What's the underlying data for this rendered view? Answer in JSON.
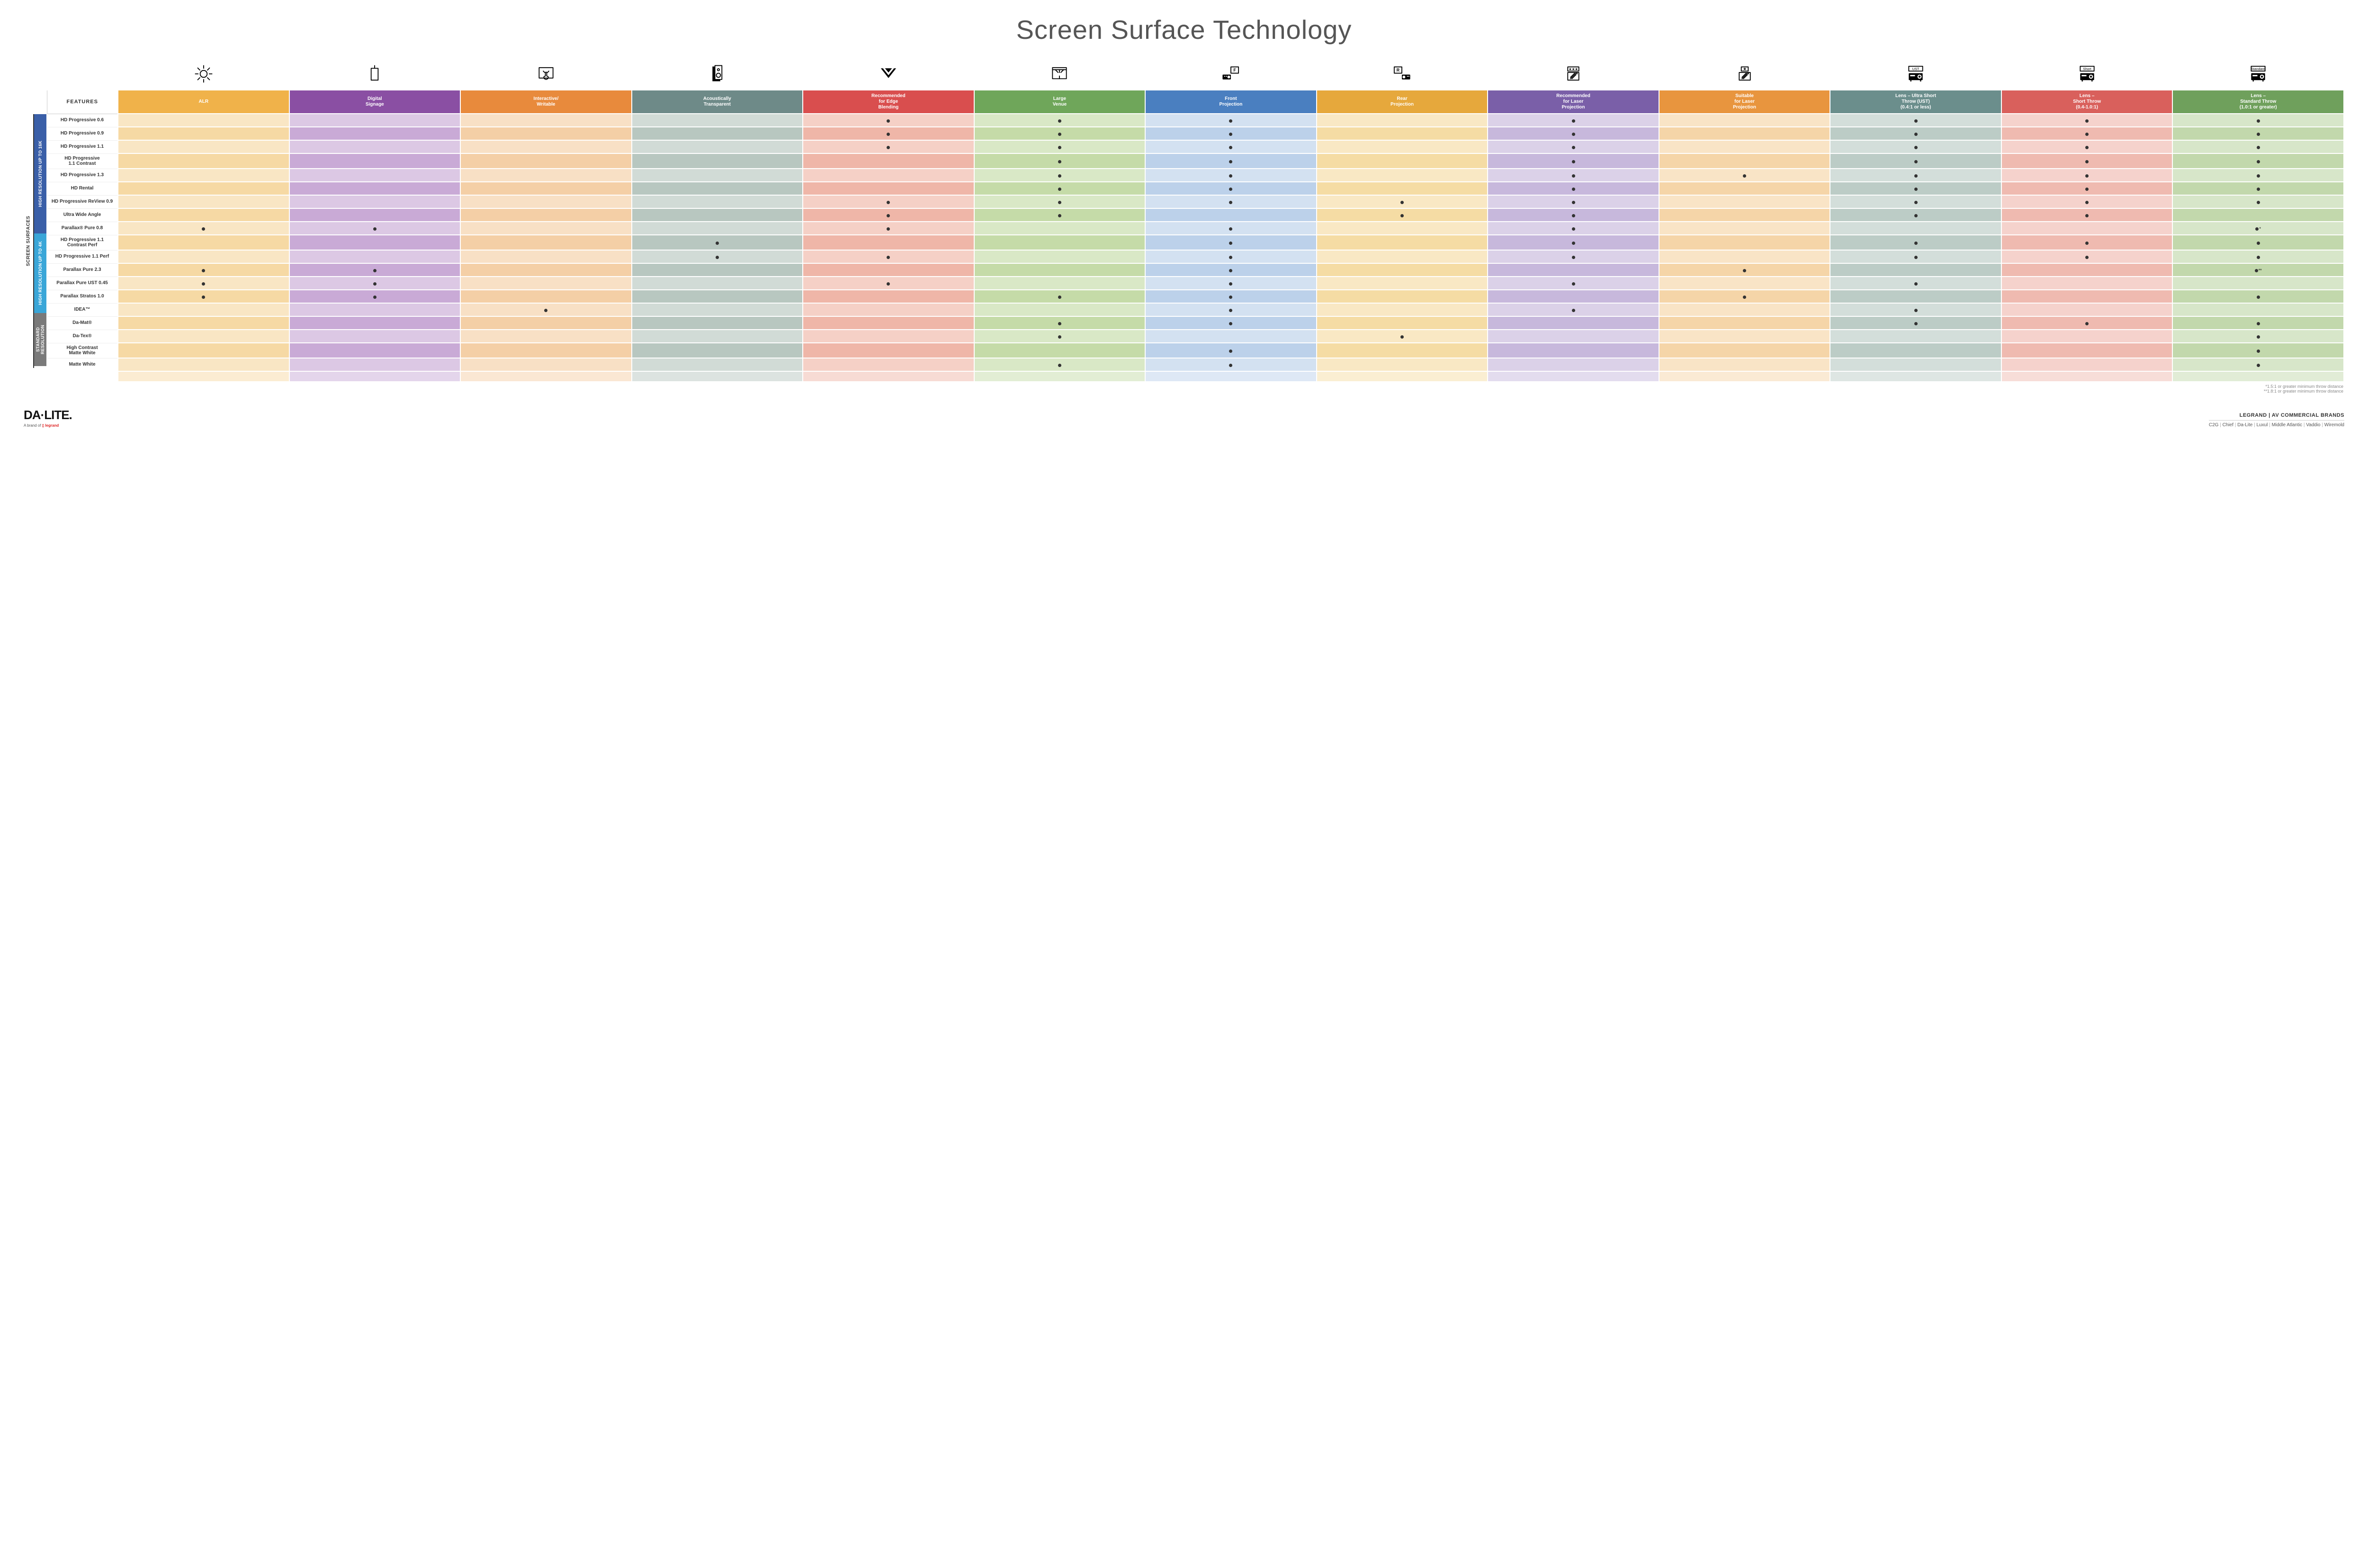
{
  "title": "Screen Surface Technology",
  "features_label": "FEATURES",
  "columns": [
    {
      "key": "alr",
      "label": "ALR",
      "color": "#f0b24a",
      "alt": "#f6d9a4"
    },
    {
      "key": "signage",
      "label": "Digital\nSignage",
      "color": "#8a4fa3",
      "alt": "#c9aad6"
    },
    {
      "key": "interactive",
      "label": "Interactive/\nWritable",
      "color": "#e88a3c",
      "alt": "#f4cfa6"
    },
    {
      "key": "acoustic",
      "label": "Acoustically\nTransparent",
      "color": "#6e8a88",
      "alt": "#b8c7c0"
    },
    {
      "key": "edge",
      "label": "Recommended\nfor Edge\nBlending",
      "color": "#d94e4e",
      "alt": "#efb6a8"
    },
    {
      "key": "large",
      "label": "Large\nVenue",
      "color": "#6fa65a",
      "alt": "#c5dba8"
    },
    {
      "key": "front",
      "label": "Front\nProjection",
      "color": "#4a7fc0",
      "alt": "#bcd1ea"
    },
    {
      "key": "rear",
      "label": "Rear\nProjection",
      "color": "#e6a83c",
      "alt": "#f5dca4"
    },
    {
      "key": "reclaser",
      "label": "Recommended\nfor Laser\nProjection",
      "color": "#7a5fa8",
      "alt": "#c7b8dc"
    },
    {
      "key": "suitlaser",
      "label": "Suitable\nfor Laser\nProjection",
      "color": "#e8953e",
      "alt": "#f5d5a8"
    },
    {
      "key": "ust",
      "label": "Lens – Ultra Short\nThrow (UST)\n(0.4:1 or less)",
      "color": "#6b8e8c",
      "alt": "#bcccc6"
    },
    {
      "key": "short",
      "label": "Lens –\nShort Throw\n(0.4-1.0:1)",
      "color": "#d9605c",
      "alt": "#efbab0"
    },
    {
      "key": "std",
      "label": "Lens –\nStandard Throw\n(1.0:1 or greater)",
      "color": "#6fa05c",
      "alt": "#c2d8ac"
    }
  ],
  "groups": [
    {
      "label": "HIGH RESOLUTION UP TO 16K",
      "color": "#3a5fa8",
      "rows": 9
    },
    {
      "label": "HIGH RESOLUTION UP TO 4K",
      "color": "#3aa6d8",
      "rows": 6
    },
    {
      "label": "STANDARD\nRESOLUTION",
      "color": "#7a7a7a",
      "rows": 4
    }
  ],
  "side_label": "SCREEN SURFACES",
  "rows": [
    {
      "label": "HD Progressive 0.6",
      "dots": {
        "edge": "",
        "large": "",
        "front": "",
        "reclaser": "",
        "ust": "",
        "short": "",
        "std": ""
      }
    },
    {
      "label": "HD Progressive 0.9",
      "dots": {
        "edge": "",
        "large": "",
        "front": "",
        "reclaser": "",
        "ust": "",
        "short": "",
        "std": ""
      }
    },
    {
      "label": "HD Progressive 1.1",
      "dots": {
        "edge": "",
        "large": "",
        "front": "",
        "reclaser": "",
        "ust": "",
        "short": "",
        "std": ""
      }
    },
    {
      "label": "HD Progressive\n1.1 Contrast",
      "dots": {
        "large": "",
        "front": "",
        "reclaser": "",
        "ust": "",
        "short": "",
        "std": ""
      }
    },
    {
      "label": "HD Progressive 1.3",
      "dots": {
        "large": "",
        "front": "",
        "reclaser": "",
        "suitlaser": "",
        "ust": "",
        "short": "",
        "std": ""
      }
    },
    {
      "label": "HD Rental",
      "dots": {
        "large": "",
        "front": "",
        "reclaser": "",
        "ust": "",
        "short": "",
        "std": ""
      }
    },
    {
      "label": "HD Progressive ReView 0.9",
      "dots": {
        "edge": "",
        "large": "",
        "front": "",
        "rear": "",
        "reclaser": "",
        "ust": "",
        "short": "",
        "std": ""
      }
    },
    {
      "label": "Ultra Wide Angle",
      "dots": {
        "edge": "",
        "large": "",
        "rear": "",
        "reclaser": "",
        "ust": "",
        "short": ""
      }
    },
    {
      "label": "Parallax® Pure 0.8",
      "dots": {
        "alr": "",
        "signage": "",
        "edge": "",
        "front": "",
        "reclaser": "",
        "std": "*"
      }
    },
    {
      "label": "HD Progressive 1.1\nContrast Perf",
      "dots": {
        "acoustic": "",
        "front": "",
        "reclaser": "",
        "ust": "",
        "short": "",
        "std": ""
      }
    },
    {
      "label": "HD Progressive 1.1 Perf",
      "dots": {
        "acoustic": "",
        "edge": "",
        "front": "",
        "reclaser": "",
        "ust": "",
        "short": "",
        "std": ""
      }
    },
    {
      "label": "Parallax Pure 2.3",
      "dots": {
        "alr": "",
        "signage": "",
        "front": "",
        "suitlaser": "",
        "std": "**"
      }
    },
    {
      "label": "Parallax Pure UST 0.45",
      "dots": {
        "alr": "",
        "signage": "",
        "edge": "",
        "front": "",
        "reclaser": "",
        "ust": ""
      }
    },
    {
      "label": "Parallax Stratos 1.0",
      "dots": {
        "alr": "",
        "signage": "",
        "large": "",
        "front": "",
        "suitlaser": "",
        "std": ""
      }
    },
    {
      "label": "IDEA™",
      "dots": {
        "interactive": "",
        "front": "",
        "reclaser": "",
        "ust": ""
      }
    },
    {
      "label": "Da-Mat®",
      "dots": {
        "large": "",
        "front": "",
        "ust": "",
        "short": "",
        "std": ""
      }
    },
    {
      "label": "Da-Tex®",
      "dots": {
        "large": "",
        "rear": "",
        "std": ""
      }
    },
    {
      "label": "High Contrast\nMatte White",
      "dots": {
        "front": "",
        "std": ""
      }
    },
    {
      "label": "Matte White",
      "dots": {
        "large": "",
        "front": "",
        "std": ""
      }
    }
  ],
  "footnotes": [
    "*1.5:1 or greater minimum throw distance",
    "**1.8:1 or greater minimum throw distance"
  ],
  "footer": {
    "logo": "DA·LITE.",
    "logo_sub_prefix": "A brand of ",
    "logo_sub_brand": "legrand",
    "right_title": "LEGRAND | AV COMMERCIAL BRANDS",
    "brands": [
      "C2G",
      "Chief",
      "Da-Lite",
      "Luxul",
      "Middle Atlantic",
      "Vaddio",
      "Wiremold"
    ]
  },
  "icons": {
    "alr": "bulb",
    "signage": "signage",
    "interactive": "touch",
    "acoustic": "speaker",
    "edge": "edge",
    "large": "venue",
    "front": "front-proj",
    "rear": "rear-proj",
    "reclaser": "laser-rec",
    "suitlaser": "laser-suit",
    "ust": "proj-ust",
    "short": "proj-short",
    "std": "proj-std"
  }
}
